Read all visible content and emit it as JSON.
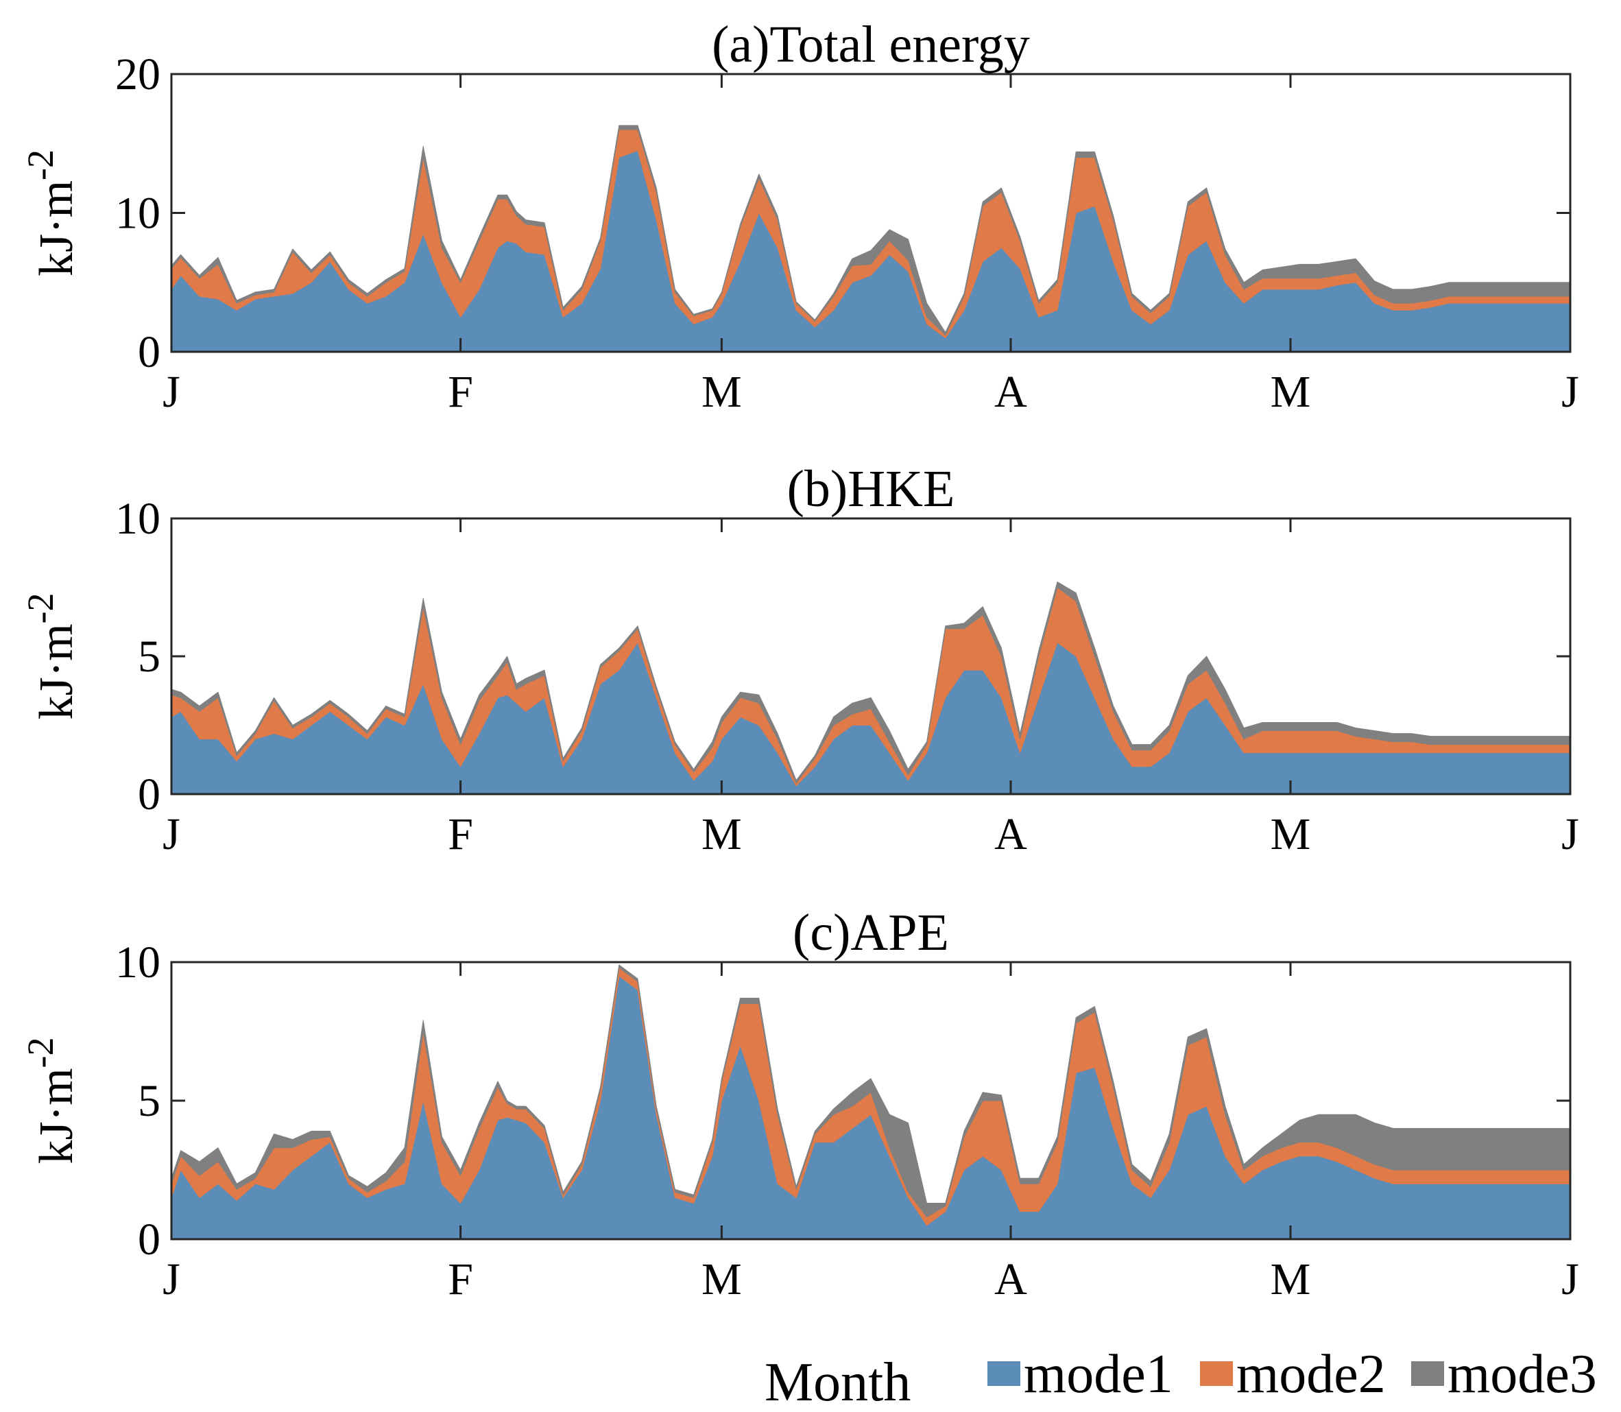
{
  "chart_data": [
    {
      "type": "area",
      "title": "(a)Total energy",
      "ylabel": "kJ·m",
      "ylabel_sup": "-2",
      "ylim": [
        0,
        20
      ],
      "yticks": [
        0,
        10,
        20
      ],
      "xlim": [
        0,
        150
      ],
      "xticks": [
        {
          "label": "J",
          "x": 0
        },
        {
          "label": "F",
          "x": 31
        },
        {
          "label": "M",
          "x": 59
        },
        {
          "label": "A",
          "x": 90
        },
        {
          "label": "M",
          "x": 120
        },
        {
          "label": "J",
          "x": 151
        }
      ],
      "x": [
        0,
        1,
        3,
        5,
        7,
        9,
        11,
        13,
        15,
        17,
        19,
        21,
        23,
        25,
        27,
        29,
        31,
        33,
        35,
        36,
        37,
        38,
        40,
        42,
        44,
        46,
        48,
        50,
        52,
        54,
        56,
        58,
        59,
        61,
        63,
        65,
        67,
        69,
        71,
        73,
        75,
        77,
        79,
        81,
        83,
        85,
        87,
        89,
        91,
        93,
        95,
        97,
        99,
        101,
        103,
        105,
        107,
        109,
        111,
        113,
        115,
        117,
        119,
        121,
        123,
        125,
        127,
        129,
        131,
        133,
        135,
        137,
        139,
        141,
        143,
        145,
        147,
        149,
        151
      ],
      "series": [
        {
          "name": "mode1",
          "color": "#5b8db8",
          "values": [
            4.5,
            5.5,
            4.0,
            3.8,
            3.0,
            3.8,
            4.0,
            4.2,
            5.0,
            6.5,
            4.5,
            3.5,
            4.0,
            5.0,
            8.5,
            5.0,
            2.5,
            4.5,
            7.5,
            8.0,
            7.8,
            7.2,
            7.0,
            2.5,
            3.5,
            6.0,
            14.0,
            14.5,
            9.5,
            3.5,
            2.0,
            2.5,
            3.5,
            6.5,
            10.0,
            7.5,
            3.0,
            1.8,
            3.0,
            5.0,
            5.5,
            7.0,
            5.8,
            2.0,
            1.0,
            3.0,
            6.5,
            7.5,
            6.0,
            2.5,
            3.0,
            10.0,
            10.5,
            6.5,
            3.0,
            2.0,
            3.0,
            7.0,
            8.0,
            5.0,
            3.5,
            4.5,
            4.5,
            4.5,
            4.5,
            4.8,
            5.0,
            3.5,
            3.0,
            3.0,
            3.2,
            3.5,
            3.5,
            3.5,
            3.5,
            3.5,
            3.5,
            3.5,
            3.5
          ]
        },
        {
          "name": "mode2",
          "color": "#e07a48",
          "values": [
            1.5,
            1.3,
            1.3,
            2.5,
            0.5,
            0.3,
            0.3,
            3.0,
            0.7,
            0.5,
            0.5,
            0.5,
            1.0,
            0.8,
            5.5,
            2.5,
            2.5,
            3.5,
            3.5,
            3.0,
            2.0,
            2.0,
            2.0,
            0.5,
            1.0,
            2.0,
            2.0,
            1.5,
            2.0,
            0.8,
            0.6,
            0.5,
            0.7,
            2.5,
            2.5,
            2.0,
            0.5,
            0.4,
            1.0,
            1.2,
            0.8,
            1.0,
            0.8,
            0.5,
            0.2,
            1.0,
            4.0,
            4.0,
            2.0,
            1.0,
            2.0,
            4.0,
            3.5,
            3.0,
            1.0,
            0.8,
            1.0,
            3.5,
            3.5,
            2.0,
            1.0,
            0.8,
            0.8,
            0.8,
            0.8,
            0.7,
            0.7,
            0.6,
            0.5,
            0.5,
            0.5,
            0.5,
            0.5,
            0.5,
            0.5,
            0.5,
            0.5,
            0.5,
            0.5
          ]
        },
        {
          "name": "mode3",
          "color": "#808080",
          "values": [
            0.2,
            0.2,
            0.2,
            0.5,
            0.2,
            0.2,
            0.2,
            0.2,
            0.2,
            0.2,
            0.2,
            0.2,
            0.2,
            0.2,
            0.8,
            0.5,
            0.2,
            0.3,
            0.3,
            0.3,
            0.3,
            0.3,
            0.3,
            0.2,
            0.2,
            0.2,
            0.3,
            0.3,
            0.3,
            0.2,
            0.1,
            0.1,
            0.1,
            0.2,
            0.3,
            0.3,
            0.1,
            0.1,
            0.2,
            0.5,
            1.0,
            0.8,
            1.5,
            1.0,
            0.2,
            0.2,
            0.3,
            0.3,
            0.3,
            0.2,
            0.2,
            0.4,
            0.4,
            0.3,
            0.2,
            0.2,
            0.2,
            0.3,
            0.3,
            0.4,
            0.5,
            0.6,
            0.8,
            1.0,
            1.0,
            1.0,
            1.0,
            1.0,
            1.0,
            1.0,
            1.0,
            1.0,
            1.0,
            1.0,
            1.0,
            1.0,
            1.0,
            1.0,
            1.0
          ]
        }
      ]
    },
    {
      "type": "area",
      "title": "(b)HKE",
      "ylabel": "kJ·m",
      "ylabel_sup": "-2",
      "ylim": [
        0,
        10
      ],
      "yticks": [
        0,
        5,
        10
      ],
      "xlim": [
        0,
        150
      ],
      "xticks": [
        {
          "label": "J",
          "x": 0
        },
        {
          "label": "F",
          "x": 31
        },
        {
          "label": "M",
          "x": 59
        },
        {
          "label": "A",
          "x": 90
        },
        {
          "label": "M",
          "x": 120
        },
        {
          "label": "J",
          "x": 151
        }
      ],
      "x": [
        0,
        1,
        3,
        5,
        7,
        9,
        11,
        13,
        15,
        17,
        19,
        21,
        23,
        25,
        27,
        29,
        31,
        33,
        35,
        36,
        37,
        38,
        40,
        42,
        44,
        46,
        48,
        50,
        52,
        54,
        56,
        58,
        59,
        61,
        63,
        65,
        67,
        69,
        71,
        73,
        75,
        77,
        79,
        81,
        83,
        85,
        87,
        89,
        91,
        93,
        95,
        97,
        99,
        101,
        103,
        105,
        107,
        109,
        111,
        113,
        115,
        117,
        119,
        121,
        123,
        125,
        127,
        129,
        131,
        133,
        135,
        137,
        139,
        141,
        143,
        145,
        147,
        149,
        151
      ],
      "series": [
        {
          "name": "mode1",
          "color": "#5b8db8",
          "values": [
            2.8,
            3.0,
            2.0,
            2.0,
            1.2,
            2.0,
            2.2,
            2.0,
            2.5,
            3.0,
            2.5,
            2.0,
            2.8,
            2.5,
            4.0,
            2.0,
            1.0,
            2.2,
            3.5,
            3.6,
            3.3,
            3.0,
            3.5,
            1.0,
            2.0,
            4.0,
            4.5,
            5.5,
            3.5,
            1.5,
            0.5,
            1.2,
            2.0,
            2.8,
            2.5,
            1.5,
            0.3,
            1.0,
            2.0,
            2.5,
            2.5,
            1.5,
            0.5,
            1.5,
            3.5,
            4.5,
            4.5,
            3.5,
            1.5,
            3.5,
            5.5,
            5.0,
            3.5,
            2.0,
            1.0,
            1.0,
            1.5,
            3.0,
            3.5,
            2.5,
            1.5,
            1.5,
            1.5,
            1.5,
            1.5,
            1.5,
            1.5,
            1.5,
            1.5,
            1.5,
            1.5,
            1.5,
            1.5,
            1.5,
            1.5,
            1.5,
            1.5,
            1.5,
            1.5
          ]
        },
        {
          "name": "mode2",
          "color": "#e07a48",
          "values": [
            0.8,
            0.5,
            1.0,
            1.5,
            0.2,
            0.2,
            1.2,
            0.4,
            0.3,
            0.3,
            0.3,
            0.2,
            0.3,
            0.3,
            2.8,
            1.5,
            0.8,
            1.2,
            0.8,
            1.2,
            0.5,
            1.0,
            0.8,
            0.2,
            0.3,
            0.6,
            0.7,
            0.5,
            0.3,
            0.3,
            0.3,
            0.5,
            0.6,
            0.7,
            0.8,
            0.5,
            0.1,
            0.3,
            0.5,
            0.4,
            0.6,
            0.4,
            0.2,
            0.3,
            2.5,
            1.5,
            2.0,
            1.5,
            0.5,
            1.5,
            2.0,
            2.0,
            1.5,
            1.0,
            0.6,
            0.6,
            0.8,
            1.0,
            1.0,
            0.8,
            0.5,
            0.8,
            0.8,
            0.8,
            0.8,
            0.8,
            0.6,
            0.5,
            0.4,
            0.4,
            0.3,
            0.3,
            0.3,
            0.3,
            0.3,
            0.3,
            0.3,
            0.3,
            0.3
          ]
        },
        {
          "name": "mode3",
          "color": "#808080",
          "values": [
            0.2,
            0.2,
            0.2,
            0.2,
            0.1,
            0.1,
            0.1,
            0.1,
            0.1,
            0.1,
            0.1,
            0.1,
            0.1,
            0.1,
            0.3,
            0.2,
            0.2,
            0.2,
            0.2,
            0.2,
            0.2,
            0.2,
            0.2,
            0.1,
            0.1,
            0.1,
            0.1,
            0.1,
            0.1,
            0.1,
            0.1,
            0.2,
            0.2,
            0.2,
            0.3,
            0.2,
            0.1,
            0.1,
            0.3,
            0.4,
            0.4,
            0.4,
            0.2,
            0.1,
            0.1,
            0.2,
            0.3,
            0.3,
            0.2,
            0.2,
            0.2,
            0.3,
            0.3,
            0.2,
            0.2,
            0.2,
            0.2,
            0.3,
            0.5,
            0.5,
            0.4,
            0.3,
            0.3,
            0.3,
            0.3,
            0.3,
            0.3,
            0.3,
            0.3,
            0.3,
            0.3,
            0.3,
            0.3,
            0.3,
            0.3,
            0.3,
            0.3,
            0.3,
            0.3
          ]
        }
      ]
    },
    {
      "type": "area",
      "title": "(c)APE",
      "ylabel": "kJ·m",
      "ylabel_sup": "-2",
      "ylim": [
        0,
        10
      ],
      "yticks": [
        0,
        5,
        10
      ],
      "xlim": [
        0,
        150
      ],
      "xticks": [
        {
          "label": "J",
          "x": 0
        },
        {
          "label": "F",
          "x": 31
        },
        {
          "label": "M",
          "x": 59
        },
        {
          "label": "A",
          "x": 90
        },
        {
          "label": "M",
          "x": 120
        },
        {
          "label": "J",
          "x": 151
        }
      ],
      "x": [
        0,
        1,
        3,
        5,
        7,
        9,
        11,
        13,
        15,
        17,
        19,
        21,
        23,
        25,
        27,
        29,
        31,
        33,
        35,
        36,
        37,
        38,
        40,
        42,
        44,
        46,
        48,
        50,
        52,
        54,
        56,
        58,
        59,
        61,
        63,
        65,
        67,
        69,
        71,
        73,
        75,
        77,
        79,
        81,
        83,
        85,
        87,
        89,
        91,
        93,
        95,
        97,
        99,
        101,
        103,
        105,
        107,
        109,
        111,
        113,
        115,
        117,
        119,
        121,
        123,
        125,
        127,
        129,
        131,
        133,
        135,
        137,
        139,
        141,
        143,
        145,
        147,
        149,
        151
      ],
      "series": [
        {
          "name": "mode1",
          "color": "#5b8db8",
          "values": [
            1.5,
            2.5,
            1.5,
            2.0,
            1.4,
            2.0,
            1.8,
            2.5,
            3.0,
            3.5,
            2.0,
            1.5,
            1.8,
            2.0,
            5.0,
            2.0,
            1.3,
            2.5,
            4.3,
            4.4,
            4.3,
            4.2,
            3.5,
            1.5,
            2.5,
            5.0,
            9.5,
            9.0,
            4.5,
            1.5,
            1.3,
            3.0,
            5.0,
            7.0,
            5.0,
            2.0,
            1.5,
            3.5,
            3.5,
            4.0,
            4.5,
            3.0,
            1.5,
            0.5,
            1.0,
            2.5,
            3.0,
            2.5,
            1.0,
            1.0,
            2.0,
            6.0,
            6.2,
            4.0,
            2.0,
            1.5,
            2.5,
            4.5,
            4.8,
            3.0,
            2.0,
            2.5,
            2.8,
            3.0,
            3.0,
            2.8,
            2.5,
            2.2,
            2.0,
            2.0,
            2.0,
            2.0,
            2.0,
            2.0,
            2.0,
            2.0,
            2.0,
            2.0,
            2.0
          ]
        },
        {
          "name": "mode2",
          "color": "#e07a48",
          "values": [
            0.5,
            0.5,
            0.8,
            0.8,
            0.4,
            0.2,
            1.5,
            0.8,
            0.6,
            0.2,
            0.2,
            0.2,
            0.3,
            0.8,
            2.5,
            1.5,
            1.0,
            1.5,
            1.2,
            0.5,
            0.4,
            0.5,
            0.5,
            0.1,
            0.2,
            0.4,
            0.3,
            0.3,
            0.2,
            0.2,
            0.2,
            0.5,
            0.7,
            1.5,
            3.5,
            2.5,
            0.3,
            0.3,
            1.0,
            0.8,
            0.8,
            0.3,
            0.2,
            0.3,
            0.2,
            1.2,
            2.0,
            2.5,
            1.0,
            1.0,
            1.5,
            1.8,
            2.0,
            1.5,
            0.5,
            0.4,
            1.0,
            2.5,
            2.5,
            1.5,
            0.5,
            0.5,
            0.5,
            0.5,
            0.5,
            0.5,
            0.5,
            0.5,
            0.5,
            0.5,
            0.5,
            0.5,
            0.5,
            0.5,
            0.5,
            0.5,
            0.5,
            0.5,
            0.5
          ]
        },
        {
          "name": "mode3",
          "color": "#808080",
          "values": [
            0.2,
            0.2,
            0.5,
            0.5,
            0.2,
            0.2,
            0.5,
            0.3,
            0.3,
            0.2,
            0.1,
            0.2,
            0.3,
            0.5,
            0.4,
            0.2,
            0.2,
            0.2,
            0.2,
            0.1,
            0.1,
            0.1,
            0.1,
            0.1,
            0.1,
            0.1,
            0.1,
            0.1,
            0.1,
            0.1,
            0.1,
            0.1,
            0.1,
            0.2,
            0.2,
            0.2,
            0.1,
            0.1,
            0.2,
            0.5,
            0.5,
            1.2,
            2.5,
            0.5,
            0.1,
            0.2,
            0.3,
            0.2,
            0.2,
            0.2,
            0.2,
            0.2,
            0.2,
            0.2,
            0.2,
            0.2,
            0.3,
            0.3,
            0.3,
            0.3,
            0.2,
            0.3,
            0.5,
            0.8,
            1.0,
            1.2,
            1.5,
            1.5,
            1.5,
            1.5,
            1.5,
            1.5,
            1.5,
            1.5,
            1.5,
            1.5,
            1.5,
            1.5,
            1.5
          ]
        }
      ]
    }
  ],
  "xlabel": "Month",
  "legend": [
    {
      "name": "mode1",
      "color": "#5b8db8"
    },
    {
      "name": "mode2",
      "color": "#e07a48"
    },
    {
      "name": "mode3",
      "color": "#808080"
    }
  ]
}
